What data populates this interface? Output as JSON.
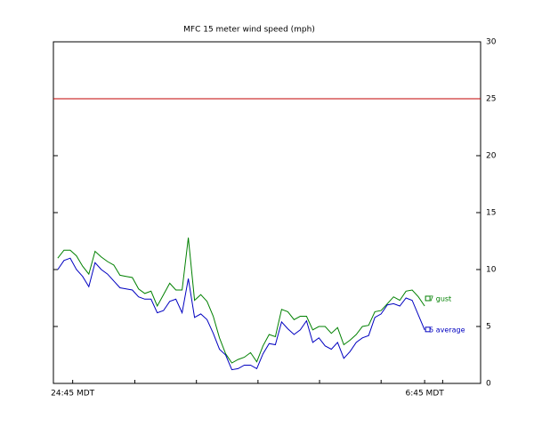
{
  "chart_data": {
    "type": "line",
    "title": "MFC 15 meter wind speed (mph)",
    "x": [
      0,
      1,
      2,
      3,
      4,
      5,
      6,
      7,
      8,
      9,
      10,
      11,
      12,
      13,
      14,
      15,
      16,
      17,
      18,
      19,
      20,
      21,
      22,
      23,
      24,
      25,
      26,
      27,
      28,
      29,
      30,
      31,
      32,
      33,
      34,
      35,
      36,
      37,
      38,
      39,
      40,
      41,
      42,
      43,
      44,
      45,
      46,
      47,
      48,
      49,
      50,
      51,
      52,
      53,
      54,
      55,
      56,
      57,
      58,
      59
    ],
    "xlim": [
      -0.7,
      68
    ],
    "xticks": [
      {
        "value": 2.4,
        "label": "24:45 MDT"
      },
      12.4,
      22.3,
      32.2,
      42.1,
      52,
      {
        "value": 59,
        "label": "6:45 MDT"
      },
      61.9
    ],
    "ylim": [
      0,
      30
    ],
    "yticks": [
      0,
      5,
      10,
      15,
      20,
      25,
      30
    ],
    "threshold": {
      "value": 25,
      "color": "#c00000"
    },
    "series": [
      {
        "name": "gust",
        "end_label": "7 gust",
        "color": "#008000",
        "values": [
          11.0,
          11.7,
          11.7,
          11.2,
          10.3,
          9.6,
          11.6,
          11.1,
          10.7,
          10.4,
          9.5,
          9.4,
          9.3,
          8.3,
          7.9,
          8.1,
          6.8,
          7.8,
          8.8,
          8.2,
          8.2,
          12.8,
          7.3,
          7.8,
          7.2,
          5.9,
          4.0,
          2.6,
          1.8,
          2.1,
          2.3,
          2.7,
          1.9,
          3.3,
          4.3,
          4.1,
          6.5,
          6.3,
          5.6,
          5.9,
          5.9,
          4.7,
          5.0,
          5.0,
          4.4,
          4.9,
          3.4,
          3.8,
          4.3,
          5.0,
          5.1,
          6.3,
          6.4,
          7.0,
          7.6,
          7.3,
          8.1,
          8.2,
          7.6,
          6.8
        ]
      },
      {
        "name": "average",
        "end_label": "5 average",
        "color": "#0000c0",
        "values": [
          10.0,
          10.8,
          11.0,
          10.0,
          9.4,
          8.5,
          10.6,
          10.0,
          9.6,
          9.0,
          8.4,
          8.3,
          8.2,
          7.6,
          7.4,
          7.4,
          6.2,
          6.4,
          7.2,
          7.4,
          6.2,
          9.2,
          5.8,
          6.1,
          5.6,
          4.4,
          3.0,
          2.5,
          1.2,
          1.3,
          1.6,
          1.6,
          1.3,
          2.6,
          3.5,
          3.4,
          5.4,
          4.8,
          4.3,
          4.7,
          5.5,
          3.6,
          4.0,
          3.3,
          3.0,
          3.6,
          2.2,
          2.8,
          3.6,
          4.0,
          4.2,
          5.8,
          6.1,
          6.9,
          7.0,
          6.8,
          7.5,
          7.3,
          6.0,
          4.7
        ]
      }
    ]
  }
}
